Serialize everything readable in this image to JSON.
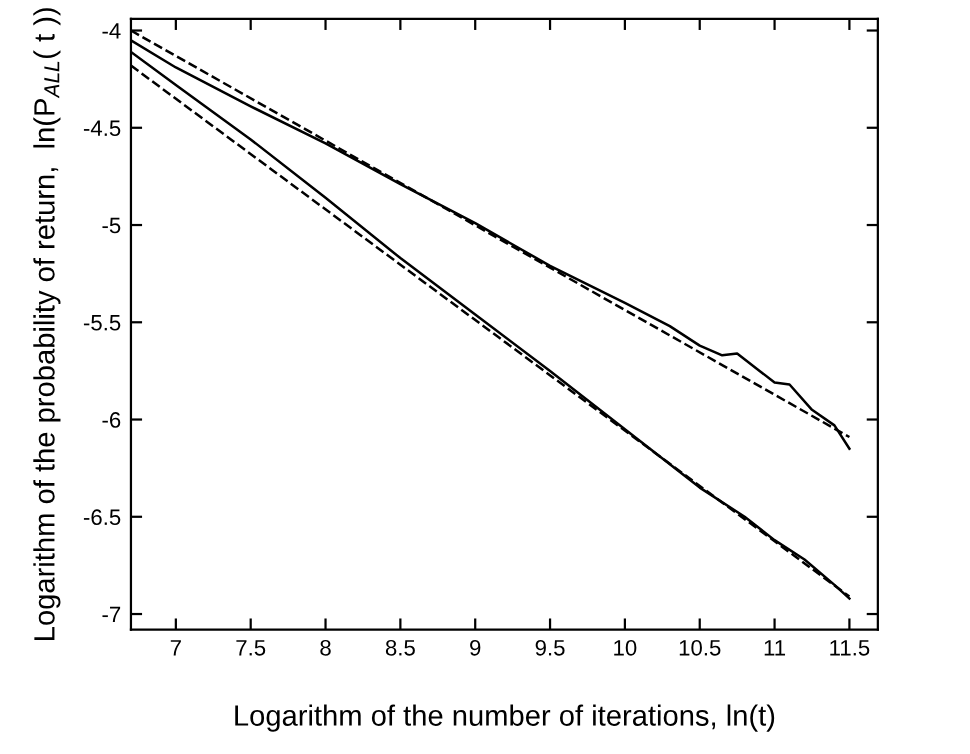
{
  "chart_data": {
    "type": "line",
    "xlabel": "Logarithm of the number of iterations, ln(t)",
    "ylabel": "Logarithm of the probability of return,  ln(P$_{ALL}$( t ))",
    "xlim": [
      6.7,
      11.69
    ],
    "ylim": [
      -7.08,
      -3.94
    ],
    "xticks": [
      7,
      7.5,
      8,
      8.5,
      9,
      9.5,
      10,
      10.5,
      11,
      11.5
    ],
    "yticks": [
      -7,
      -6.5,
      -6,
      -5.5,
      -5,
      -4.5,
      -4
    ],
    "grid": false,
    "legend": false,
    "series": [
      {
        "color": "#000000",
        "line_style": "solid",
        "x": [
          6.7,
          7.0,
          7.5,
          8.0,
          8.5,
          9.0,
          9.5,
          10.0,
          10.3,
          10.5,
          10.65,
          10.75,
          10.9,
          11.0,
          11.1,
          11.25,
          11.4,
          11.5
        ],
        "values": [
          -4.05,
          -4.19,
          -4.39,
          -4.58,
          -4.79,
          -4.99,
          -5.21,
          -5.4,
          -5.52,
          -5.62,
          -5.67,
          -5.66,
          -5.75,
          -5.81,
          -5.82,
          -5.95,
          -6.03,
          -6.15
        ]
      },
      {
        "color": "#000000",
        "line_style": "dashed",
        "x": [
          6.7,
          11.5
        ],
        "values": [
          -4.0,
          -6.09
        ]
      },
      {
        "color": "#000000",
        "line_style": "solid",
        "x": [
          6.7,
          7.0,
          7.5,
          8.0,
          8.5,
          9.0,
          9.5,
          10.0,
          10.5,
          10.8,
          11.0,
          11.2,
          11.4,
          11.5
        ],
        "values": [
          -4.11,
          -4.28,
          -4.56,
          -4.86,
          -5.17,
          -5.46,
          -5.75,
          -6.05,
          -6.35,
          -6.5,
          -6.62,
          -6.72,
          -6.85,
          -6.92
        ]
      },
      {
        "color": "#000000",
        "line_style": "dashed",
        "x": [
          6.7,
          11.5
        ],
        "values": [
          -4.18,
          -6.91
        ]
      }
    ]
  }
}
